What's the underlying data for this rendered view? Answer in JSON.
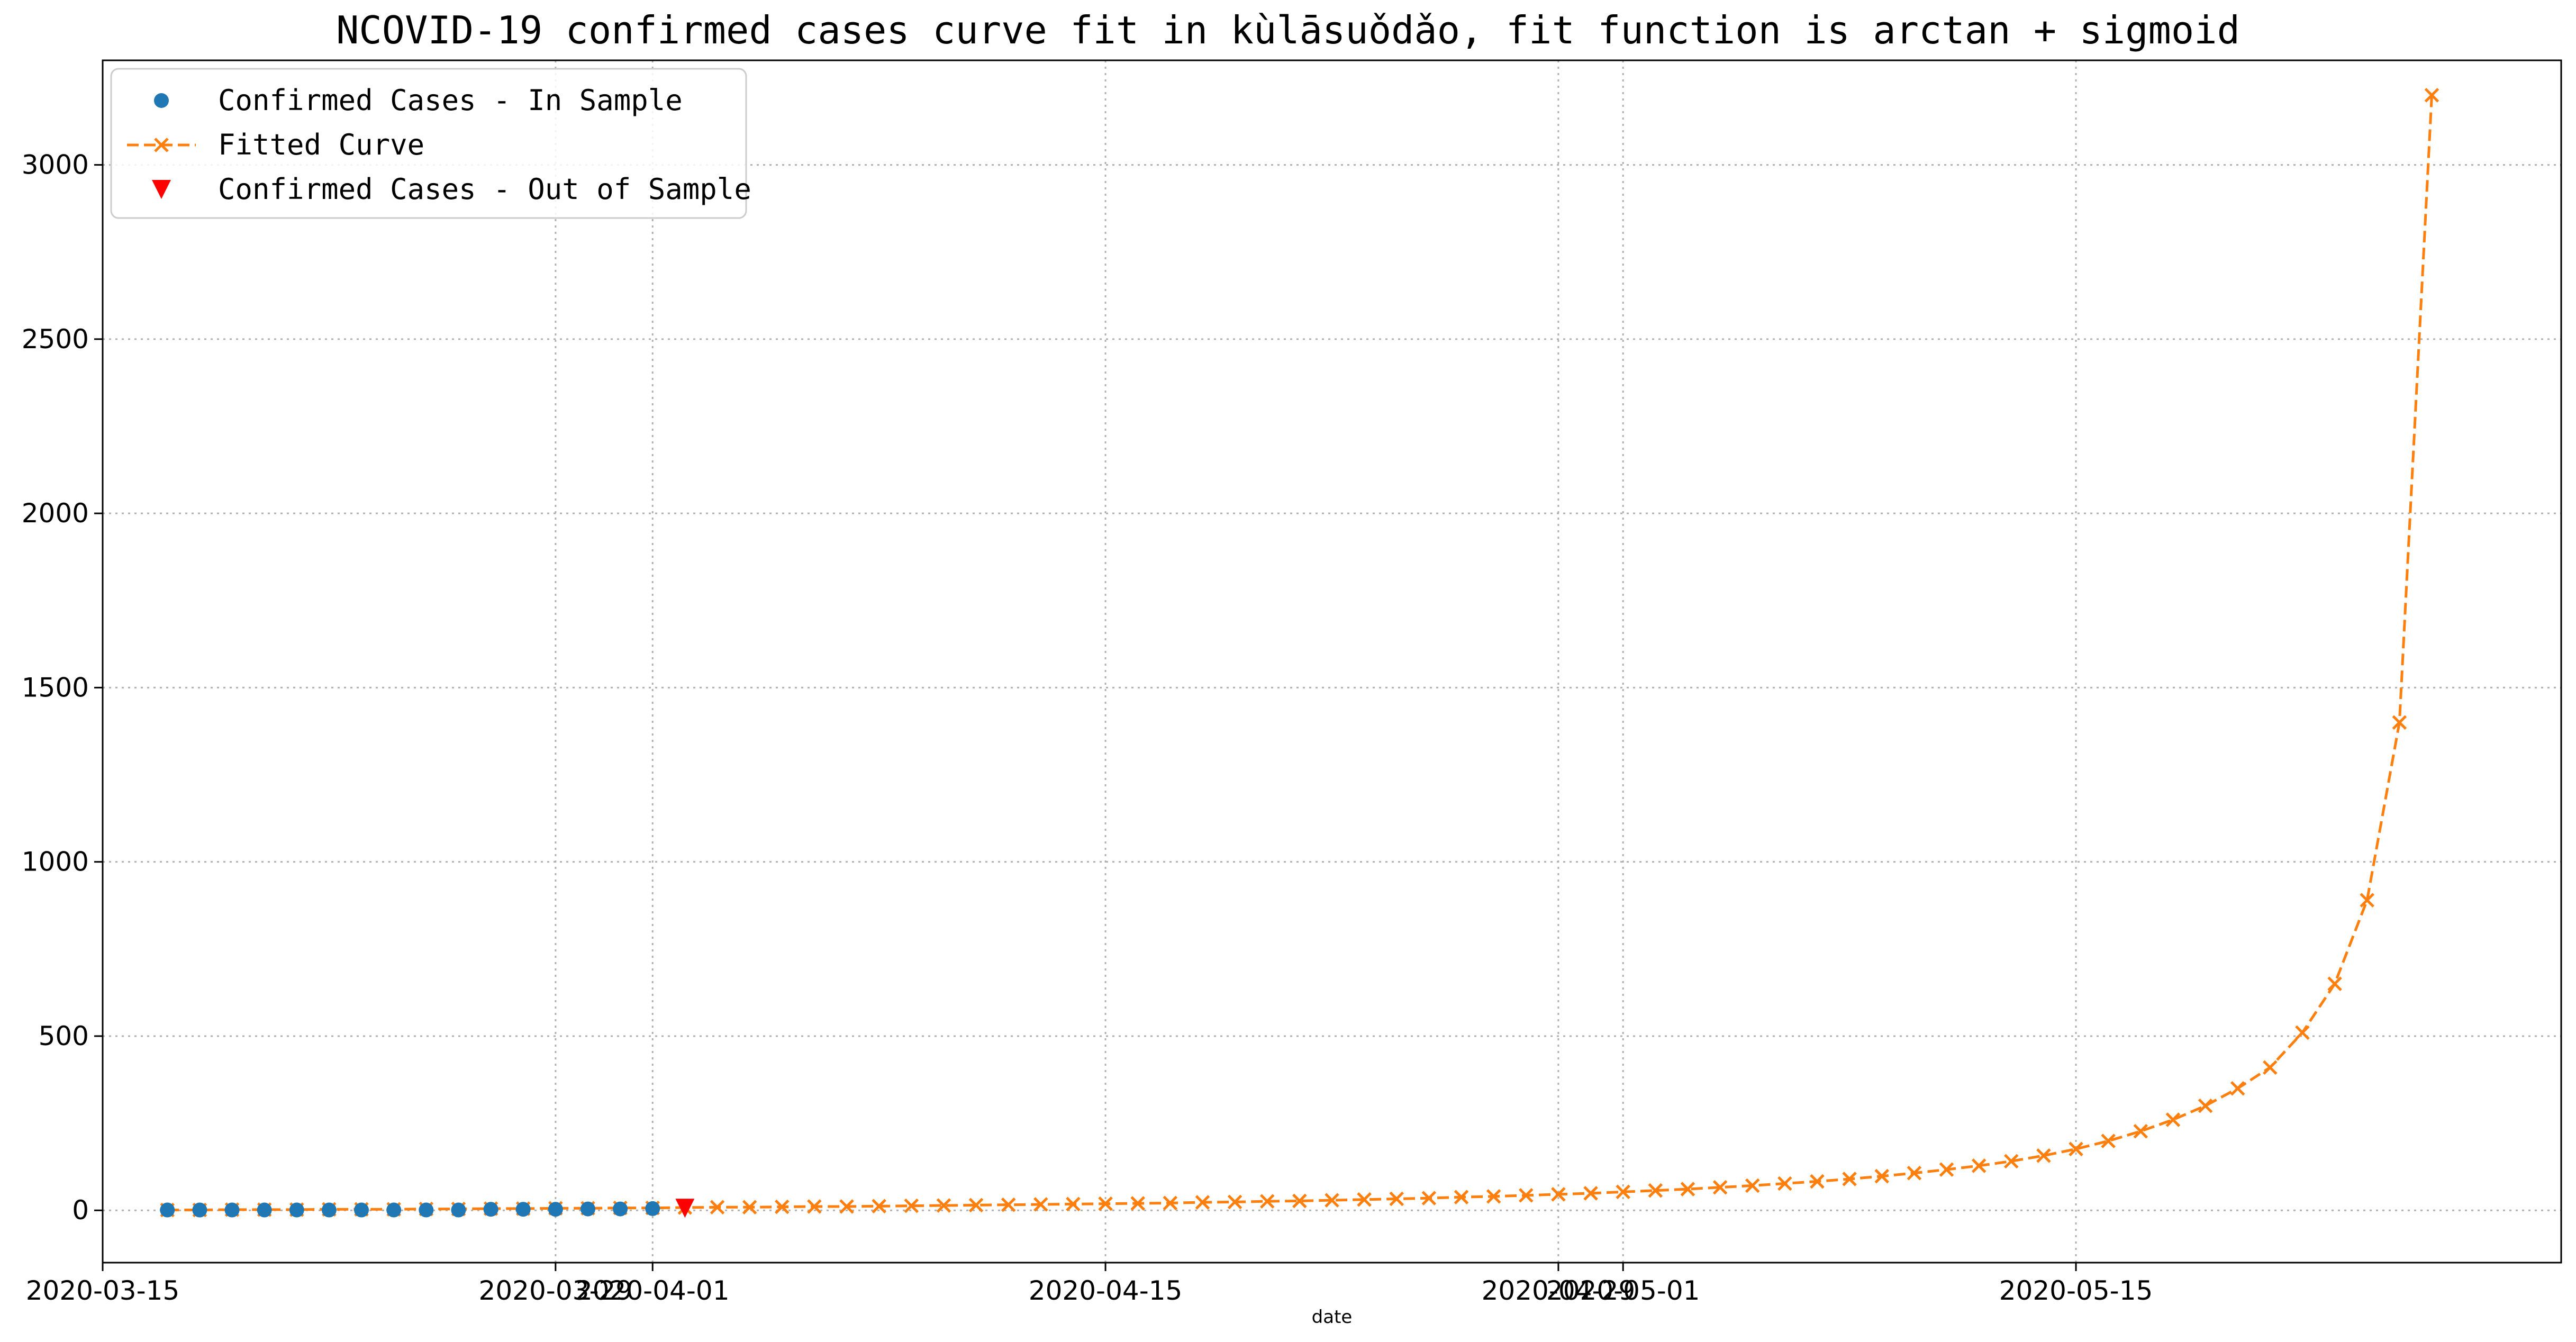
{
  "chart_data": {
    "type": "line",
    "title": "NCOVID-19 confirmed cases curve fit in kùlāsuǒdǎo, fit function is arctan + sigmoid",
    "xlabel": "date",
    "ylabel": "",
    "x_start": "2020-03-17",
    "xlim": [
      "2020-03-15",
      "2020-05-30"
    ],
    "ylim": [
      -150,
      3300
    ],
    "yticks": [
      0,
      500,
      1000,
      1500,
      2000,
      2500,
      3000
    ],
    "xticks": [
      {
        "date": "2020-03-15",
        "label": "2020-03-15"
      },
      {
        "date": "2020-03-29",
        "label": "2020-03-29"
      },
      {
        "date": "2020-04-01",
        "label": "2020-04-01"
      },
      {
        "date": "2020-04-15",
        "label": "2020-04-15"
      },
      {
        "date": "2020-04-29",
        "label": "2020-04-29"
      },
      {
        "date": "2020-05-01",
        "label": "2020-05-01"
      },
      {
        "date": "2020-05-15",
        "label": "2020-05-15"
      }
    ],
    "grid": true,
    "legend_position": "top-left",
    "series": [
      {
        "name": "Confirmed Cases - In Sample",
        "marker": "circle",
        "color": "#1f77b4",
        "start_date": "2020-03-17",
        "values": [
          1,
          1,
          1,
          1,
          1,
          1,
          1,
          1,
          1,
          1,
          3,
          3,
          3,
          4,
          4,
          5
        ]
      },
      {
        "name": "Fitted Curve",
        "marker": "x",
        "linestyle": "dashed",
        "color": "#ff7f0e",
        "start_date": "2020-03-17",
        "values": [
          1,
          1,
          2,
          2,
          2,
          3,
          3,
          3,
          4,
          4,
          5,
          5,
          6,
          6,
          7,
          7,
          8,
          9,
          9,
          10,
          11,
          11,
          12,
          13,
          14,
          15,
          16,
          17,
          18,
          19,
          20,
          21,
          23,
          24,
          26,
          27,
          29,
          31,
          33,
          35,
          38,
          40,
          43,
          46,
          49,
          53,
          57,
          61,
          66,
          71,
          77,
          83,
          90,
          98,
          107,
          117,
          128,
          141,
          157,
          176,
          199,
          227,
          260,
          300,
          350,
          410,
          510,
          650,
          890,
          1400,
          3200
        ]
      },
      {
        "name": "Confirmed Cases - Out of Sample",
        "marker": "triangle_down",
        "color": "#ff0000",
        "start_date": "2020-04-02",
        "values": [
          6
        ]
      }
    ]
  }
}
